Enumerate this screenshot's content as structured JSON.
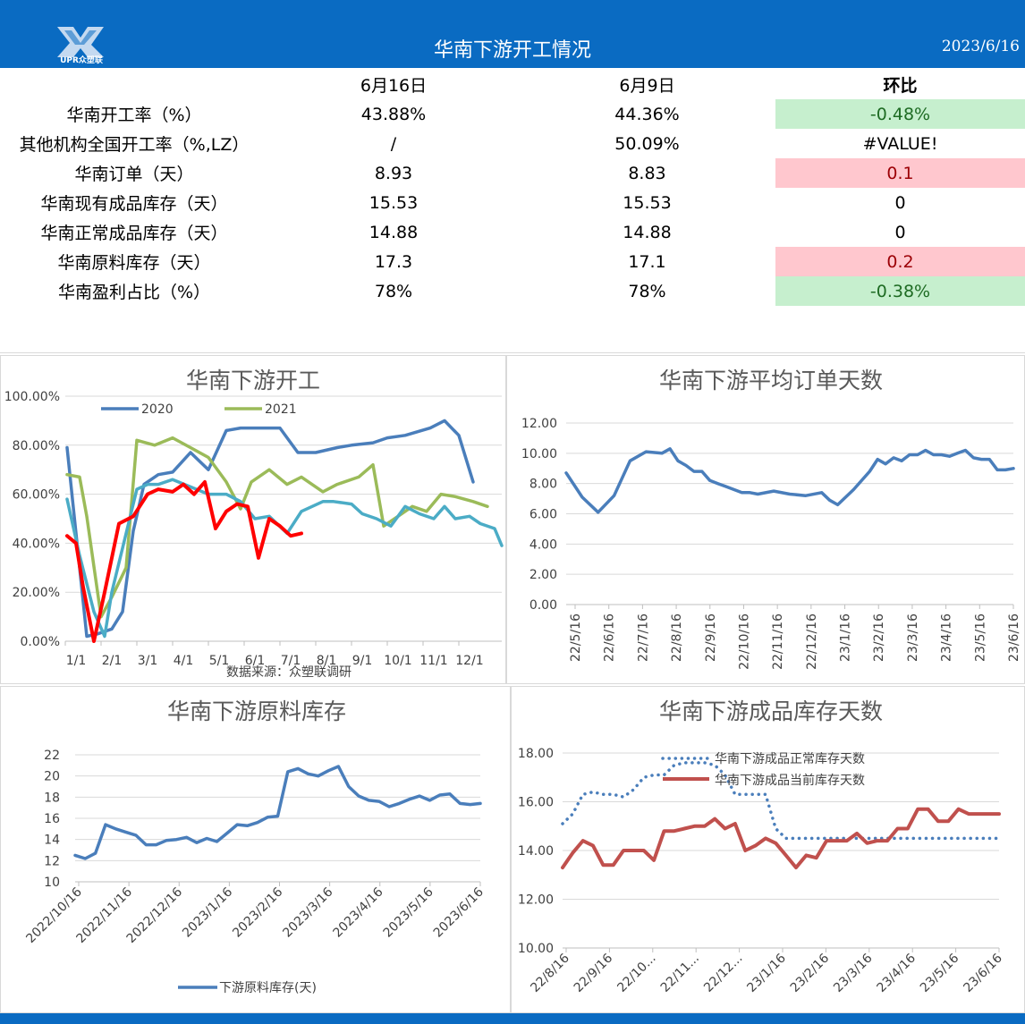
{
  "header": {
    "logo_text": "UPR众塑联",
    "title": "华南下游开工情况",
    "date": "2023/6/16"
  },
  "table": {
    "columns": [
      "",
      "6月16日",
      "6月9日",
      "环比"
    ],
    "rows": [
      {
        "label": "华南开工率（%）",
        "cur": "43.88%",
        "prev": "44.36%",
        "chg": "-0.48%",
        "status": "down"
      },
      {
        "label": "其他机构全国开工率（%,LZ）",
        "cur": "/",
        "prev": "50.09%",
        "chg": "#VALUE!",
        "status": "none"
      },
      {
        "label": "华南订单（天）",
        "cur": "8.93",
        "prev": "8.83",
        "chg": "0.1",
        "status": "up"
      },
      {
        "label": "华南现有成品库存（天）",
        "cur": "15.53",
        "prev": "15.53",
        "chg": "0",
        "status": "none"
      },
      {
        "label": "华南正常成品库存（天）",
        "cur": "14.88",
        "prev": "14.88",
        "chg": "0",
        "status": "none"
      },
      {
        "label": "华南原料库存（天）",
        "cur": "17.3",
        "prev": "17.1",
        "chg": "0.2",
        "status": "up"
      },
      {
        "label": "华南盈利占比（%）",
        "cur": "78%",
        "prev": "78%",
        "chg": "-0.38%",
        "status": "down"
      }
    ],
    "colors": {
      "down_bg": "#c6efce",
      "down_fg": "#1e6b23",
      "up_bg": "#ffc7ce",
      "up_fg": "#9c0006"
    }
  },
  "chart_data": [
    {
      "id": "operating",
      "type": "line",
      "title": "华南下游开工",
      "source_note": "数据来源：众塑联调研",
      "x_ticks": [
        "1/1",
        "2/1",
        "3/1",
        "4/1",
        "5/1",
        "6/1",
        "7/1",
        "8/1",
        "9/1",
        "10/1",
        "11/1",
        "12/1"
      ],
      "y_ticks": [
        "100.00%",
        "80.00%",
        "60.00%",
        "40.00%",
        "20.00%",
        "0.00%"
      ],
      "ylim": [
        0,
        100
      ],
      "xlim": [
        0,
        12.2
      ],
      "legend": [
        "2020",
        "2021"
      ],
      "series": [
        {
          "name": "2020",
          "color": "#4a7ebb",
          "width": 3.5,
          "x": [
            0.05,
            0.6,
            0.9,
            1.3,
            1.6,
            1.9,
            2.2,
            2.6,
            3.0,
            3.5,
            4.0,
            4.5,
            4.9,
            5.4,
            6.0,
            6.5,
            7.0,
            7.6,
            8.0,
            8.6,
            9.0,
            9.5,
            10.2,
            10.6,
            11.0,
            11.4
          ],
          "y": [
            79,
            2,
            3,
            5,
            12,
            45,
            64,
            68,
            69,
            77,
            70,
            86,
            87,
            87,
            87,
            77,
            77,
            79,
            80,
            81,
            83,
            84,
            87,
            90,
            84,
            65
          ]
        },
        {
          "name": "2021",
          "color": "#9bbb59",
          "width": 3.5,
          "x": [
            0.05,
            0.4,
            0.6,
            1.0,
            1.3,
            1.7,
            2.0,
            2.5,
            3.0,
            3.5,
            4.0,
            4.5,
            4.9,
            5.2,
            5.7,
            6.2,
            6.6,
            7.2,
            7.6,
            8.2,
            8.6,
            8.9,
            9.3,
            9.7,
            10.1,
            10.5,
            10.9,
            11.4,
            11.8
          ],
          "y": [
            68,
            67,
            51,
            10,
            18,
            30,
            82,
            80,
            83,
            79,
            75,
            65,
            54,
            65,
            70,
            64,
            67,
            61,
            64,
            67,
            72,
            47,
            51,
            55,
            53,
            60,
            59,
            57,
            55
          ]
        },
        {
          "name": "",
          "color": "#4bacc6",
          "width": 3.5,
          "x": [
            0.05,
            0.4,
            0.8,
            1.1,
            1.3,
            1.6,
            2.0,
            2.3,
            2.6,
            3.0,
            3.5,
            4.0,
            4.5,
            4.9,
            5.3,
            5.7,
            6.2,
            6.6,
            7.2,
            7.5,
            8.0,
            8.3,
            8.7,
            9.1,
            9.5,
            9.9,
            10.3,
            10.6,
            10.9,
            11.3,
            11.6,
            12.0,
            12.2
          ],
          "y": [
            58,
            35,
            12,
            2,
            20,
            38,
            62,
            64,
            64,
            66,
            63,
            60,
            60,
            57,
            50,
            51,
            44,
            53,
            57,
            57,
            56,
            52,
            50,
            47,
            55,
            52,
            50,
            55,
            50,
            51,
            48,
            46,
            39
          ]
        },
        {
          "name": "",
          "color": "#ff0000",
          "width": 4,
          "x": [
            0.05,
            0.3,
            0.5,
            0.8,
            1.1,
            1.5,
            1.9,
            2.3,
            2.6,
            3.0,
            3.3,
            3.6,
            3.9,
            4.2,
            4.5,
            4.8,
            5.1,
            5.4,
            5.7,
            6.0,
            6.3,
            6.6
          ],
          "y": [
            43,
            40,
            22,
            0,
            20,
            48,
            51,
            60,
            62,
            61,
            64,
            60,
            65,
            46,
            53,
            56,
            55,
            34,
            50,
            47,
            43,
            44
          ]
        }
      ]
    },
    {
      "id": "orders",
      "type": "line",
      "title": "华南下游平均订单天数",
      "y_ticks": [
        "12.00",
        "10.00",
        "8.00",
        "6.00",
        "4.00",
        "2.00",
        "0.00"
      ],
      "x_ticks": [
        "22/5/16",
        "22/6/16",
        "22/7/16",
        "22/8/16",
        "22/9/16",
        "22/10/16",
        "22/11/16",
        "22/12/16",
        "23/1/16",
        "23/2/16",
        "23/3/16",
        "23/4/16",
        "23/5/16",
        "23/6/16"
      ],
      "ylim": [
        0,
        12
      ],
      "xlim": [
        0,
        56
      ],
      "series": [
        {
          "name": "",
          "color": "#4a7ebb",
          "width": 3.5,
          "x": [
            0,
            2,
            4,
            6,
            8,
            10,
            12,
            13,
            14,
            15,
            16,
            17,
            18,
            19,
            20,
            22,
            23,
            24,
            26,
            28,
            30,
            32,
            33,
            34,
            36,
            38,
            39,
            40,
            41,
            42,
            43,
            44,
            45,
            46,
            47,
            48,
            49,
            50,
            51,
            52,
            53,
            54,
            55,
            56
          ],
          "y": [
            8.7,
            7.1,
            6.1,
            7.2,
            9.5,
            10.1,
            10.0,
            10.3,
            9.5,
            9.2,
            8.8,
            8.8,
            8.2,
            8.0,
            7.8,
            7.4,
            7.4,
            7.3,
            7.5,
            7.3,
            7.2,
            7.4,
            6.9,
            6.6,
            7.6,
            8.8,
            9.6,
            9.3,
            9.7,
            9.5,
            9.9,
            9.9,
            10.2,
            9.9,
            9.9,
            9.8,
            10.0,
            10.2,
            9.7,
            9.6,
            9.6,
            8.9,
            8.9,
            9.0
          ]
        }
      ]
    },
    {
      "id": "raw_material",
      "type": "line",
      "title": "华南下游原料库存",
      "y_ticks": [
        "22",
        "20",
        "18",
        "16",
        "14",
        "12",
        "10"
      ],
      "x_ticks": [
        "2022/10/16",
        "2022/11/16",
        "2022/12/16",
        "2023/1/16",
        "2023/2/16",
        "2023/3/16",
        "2023/4/16",
        "2023/5/16",
        "2023/6/16"
      ],
      "ylim": [
        10,
        22
      ],
      "xlim": [
        0,
        40
      ],
      "series": [
        {
          "name": "下游原料库存(天)",
          "color": "#4a7ebb",
          "width": 3.5,
          "x": [
            0,
            1,
            2,
            3,
            4,
            5,
            6,
            7,
            8,
            9,
            10,
            11,
            12,
            13,
            14,
            15,
            16,
            17,
            18,
            19,
            20,
            21,
            22,
            23,
            24,
            25,
            26,
            27,
            28,
            29,
            30,
            31,
            32,
            33,
            34,
            35,
            36,
            37,
            38,
            39,
            40
          ],
          "y": [
            12.5,
            12.2,
            12.7,
            15.4,
            15.0,
            14.7,
            14.4,
            13.5,
            13.5,
            13.9,
            14.0,
            14.2,
            13.7,
            14.1,
            13.8,
            14.6,
            15.4,
            15.3,
            15.6,
            16.1,
            16.2,
            20.4,
            20.7,
            20.2,
            20.0,
            20.5,
            20.9,
            19.0,
            18.1,
            17.7,
            17.6,
            17.1,
            17.4,
            17.8,
            18.1,
            17.7,
            18.2,
            18.3,
            17.4,
            17.3,
            17.4
          ]
        }
      ]
    },
    {
      "id": "finished_goods",
      "type": "line",
      "title": "华南下游成品库存天数",
      "y_ticks": [
        "18.00",
        "16.00",
        "14.00",
        "12.00",
        "10.00"
      ],
      "x_ticks": [
        "22/8/16",
        "22/9/16",
        "22/10...",
        "22/11...",
        "22/12...",
        "23/1/16",
        "23/2/16",
        "23/3/16",
        "23/4/16",
        "23/5/16",
        "23/6/16"
      ],
      "ylim": [
        10,
        18
      ],
      "xlim": [
        0,
        43
      ],
      "legend": [
        "华南下游成品正常库存天数",
        "华南下游成品当前库存天数"
      ],
      "series": [
        {
          "name": "华南下游成品正常库存天数",
          "color": "#4a7ebb",
          "width": 3.5,
          "dotted": true,
          "x": [
            0,
            1,
            2,
            3,
            4,
            5,
            6,
            7,
            8,
            9,
            10,
            11,
            12,
            13,
            14,
            15,
            16,
            17,
            18,
            19,
            20,
            21,
            22,
            23,
            24,
            25,
            26,
            27,
            28,
            29,
            30,
            31,
            32,
            33,
            34,
            35,
            36,
            37,
            38,
            39,
            40,
            41,
            42,
            43
          ],
          "y": [
            15.1,
            15.5,
            16.3,
            16.4,
            16.3,
            16.3,
            16.2,
            16.5,
            17.0,
            17.1,
            17.1,
            17.5,
            17.6,
            17.6,
            17.6,
            17.5,
            17.1,
            16.3,
            16.3,
            16.3,
            16.3,
            14.9,
            14.5,
            14.5,
            14.5,
            14.5,
            14.5,
            14.5,
            14.5,
            14.5,
            14.5,
            14.5,
            14.5,
            14.5,
            14.5,
            14.5,
            14.5,
            14.5,
            14.5,
            14.5,
            14.5,
            14.5,
            14.5,
            14.5
          ]
        },
        {
          "name": "华南下游成品当前库存天数",
          "color": "#c0504d",
          "width": 4,
          "x": [
            0,
            1,
            2,
            3,
            4,
            5,
            6,
            7,
            8,
            9,
            10,
            11,
            12,
            13,
            14,
            15,
            16,
            17,
            18,
            19,
            20,
            21,
            22,
            23,
            24,
            25,
            26,
            27,
            28,
            29,
            30,
            31,
            32,
            33,
            34,
            35,
            36,
            37,
            38,
            39,
            40,
            41,
            42,
            43
          ],
          "y": [
            13.3,
            13.9,
            14.4,
            14.2,
            13.4,
            13.4,
            14.0,
            14.0,
            14.0,
            13.6,
            14.8,
            14.8,
            14.9,
            15.0,
            15.0,
            15.3,
            14.9,
            15.1,
            14.0,
            14.2,
            14.5,
            14.3,
            13.8,
            13.3,
            13.8,
            13.7,
            14.4,
            14.4,
            14.4,
            14.7,
            14.3,
            14.4,
            14.4,
            14.9,
            14.9,
            15.7,
            15.7,
            15.2,
            15.2,
            15.7,
            15.5,
            15.5,
            15.5,
            15.5
          ]
        }
      ]
    }
  ]
}
